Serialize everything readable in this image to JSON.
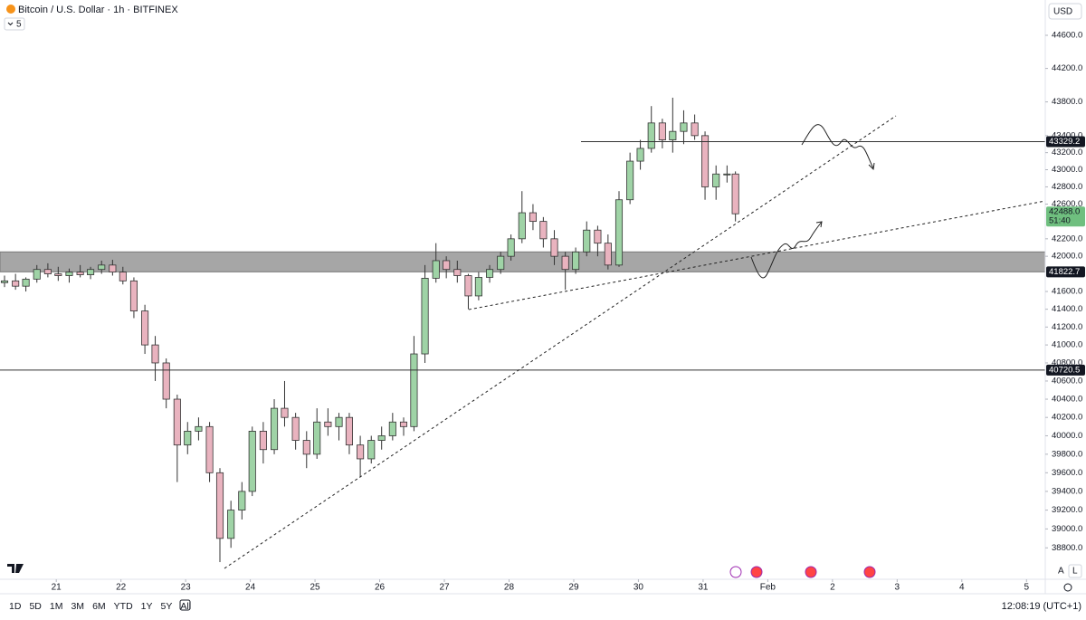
{
  "header": {
    "symbol": "Bitcoin / U.S. Dollar · 1h · BITFINEX",
    "indicator_count": "5",
    "currency": "USD"
  },
  "chart_data": {
    "type": "candlestick",
    "x": [
      20.2,
      20.37,
      20.53,
      20.7,
      20.87,
      21.03,
      21.2,
      21.37,
      21.53,
      21.7,
      21.87,
      22.03,
      22.2,
      22.37,
      22.53,
      22.7,
      22.87,
      23.03,
      23.2,
      23.37,
      23.53,
      23.7,
      23.87,
      24.03,
      24.2,
      24.37,
      24.53,
      24.7,
      24.87,
      25.03,
      25.2,
      25.37,
      25.53,
      25.7,
      25.87,
      26.03,
      26.2,
      26.37,
      26.53,
      26.7,
      26.87,
      27.03,
      27.2,
      27.37,
      27.53,
      27.7,
      27.87,
      28.03,
      28.2,
      28.37,
      28.53,
      28.7,
      28.87,
      29.03,
      29.2,
      29.37,
      29.53,
      29.7,
      29.87,
      30.03,
      30.2,
      30.37,
      30.53,
      30.7,
      30.87,
      31.03,
      31.2,
      31.37,
      31.5
    ],
    "open": [
      41700,
      41720,
      41660,
      41740,
      41850,
      41800,
      41780,
      41820,
      41790,
      41850,
      41900,
      41820,
      41720,
      41380,
      41000,
      40800,
      40400,
      39900,
      40050,
      40100,
      39600,
      38900,
      39200,
      39400,
      40050,
      39850,
      40300,
      40200,
      39950,
      39800,
      40150,
      40100,
      40200,
      39900,
      39750,
      39950,
      40000,
      40150,
      40100,
      40900,
      41750,
      41950,
      41850,
      41780,
      41550,
      41760,
      41850,
      42000,
      42200,
      42500,
      42400,
      42200,
      42000,
      41850,
      42050,
      42300,
      42150,
      41900,
      42650,
      43100,
      43250,
      43550,
      43350,
      43450,
      43550,
      43400,
      42800,
      42950,
      42950
    ],
    "high": [
      41780,
      41800,
      41760,
      41900,
      41920,
      41880,
      41860,
      41900,
      41880,
      41950,
      41960,
      41880,
      41760,
      41450,
      41100,
      40850,
      40450,
      40150,
      40200,
      40150,
      39650,
      39300,
      39500,
      40100,
      40150,
      40400,
      40600,
      40250,
      40050,
      40300,
      40300,
      40250,
      40250,
      40000,
      40000,
      40100,
      40250,
      40200,
      41100,
      41900,
      42150,
      42000,
      41950,
      41800,
      41820,
      41900,
      42050,
      42250,
      42750,
      42600,
      42450,
      42300,
      42050,
      42100,
      42400,
      42350,
      42250,
      42750,
      43200,
      43350,
      43750,
      43600,
      43850,
      43700,
      43650,
      43450,
      43050,
      43050,
      42980
    ],
    "low": [
      41650,
      41620,
      41600,
      41700,
      41760,
      41720,
      41700,
      41760,
      41740,
      41800,
      41780,
      41680,
      41300,
      40900,
      40600,
      40300,
      39500,
      39800,
      39950,
      39500,
      38650,
      38800,
      39100,
      39350,
      39700,
      39800,
      40100,
      39850,
      39650,
      39750,
      40000,
      39950,
      39800,
      39550,
      39700,
      39850,
      39950,
      40000,
      40050,
      40800,
      41700,
      41750,
      41700,
      41400,
      41500,
      41700,
      41800,
      41950,
      42150,
      42300,
      42100,
      41900,
      41620,
      41800,
      42000,
      42000,
      41850,
      41880,
      42600,
      43000,
      43200,
      43250,
      43200,
      43300,
      43350,
      42650,
      42650,
      42850,
      42400
    ],
    "close": [
      41720,
      41660,
      41740,
      41850,
      41800,
      41780,
      41820,
      41790,
      41850,
      41900,
      41820,
      41720,
      41380,
      41000,
      40800,
      40400,
      39900,
      40050,
      40100,
      39600,
      38900,
      39200,
      39400,
      40050,
      39850,
      40300,
      40200,
      39950,
      39800,
      40150,
      40100,
      40200,
      39900,
      39750,
      39950,
      40000,
      40150,
      40100,
      40900,
      41750,
      41950,
      41850,
      41780,
      41550,
      41760,
      41850,
      42000,
      42200,
      42500,
      42400,
      42200,
      42000,
      41850,
      42050,
      42300,
      42150,
      41900,
      42650,
      43100,
      43250,
      43550,
      43350,
      43450,
      43550,
      43400,
      42800,
      42950,
      42950,
      42488
    ],
    "up_color": "#9fd3a6",
    "down_color": "#e9b3bf",
    "ylim": [
      38470,
      45030
    ],
    "log": true,
    "yticks": [
      {
        "value": 44600,
        "label": "44600.0"
      },
      {
        "value": 44200,
        "label": "44200.0"
      },
      {
        "value": 43800,
        "label": "43800.0"
      },
      {
        "value": 43400,
        "label": "43400.0"
      },
      {
        "value": 43200,
        "label": "43200.0"
      },
      {
        "value": 43000,
        "label": "43000.0"
      },
      {
        "value": 42800,
        "label": "42800.0"
      },
      {
        "value": 42600,
        "label": "42600.0"
      },
      {
        "value": 42200,
        "label": "42200.0"
      },
      {
        "value": 42000,
        "label": "42000.0"
      },
      {
        "value": 41600,
        "label": "41600.0"
      },
      {
        "value": 41400,
        "label": "41400.0"
      },
      {
        "value": 41200,
        "label": "41200.0"
      },
      {
        "value": 41000,
        "label": "41000.0"
      },
      {
        "value": 40800,
        "label": "40800.0"
      },
      {
        "value": 40600,
        "label": "40600.0"
      },
      {
        "value": 40400,
        "label": "40400.0"
      },
      {
        "value": 40200,
        "label": "40200.0"
      },
      {
        "value": 40000,
        "label": "40000.0"
      },
      {
        "value": 39800,
        "label": "39800.0"
      },
      {
        "value": 39600,
        "label": "39600.0"
      },
      {
        "value": 39400,
        "label": "39400.0"
      },
      {
        "value": 39200,
        "label": "39200.0"
      },
      {
        "value": 39000,
        "label": "39000.0"
      },
      {
        "value": 38800,
        "label": "38800.0"
      }
    ],
    "xlim": [
      20.13,
      36.29
    ],
    "xticks": [
      21,
      22,
      23,
      24,
      25,
      26,
      27,
      28,
      29,
      30,
      31,
      {
        "value": 32,
        "label": "Feb"
      },
      {
        "value": 33,
        "label": "2"
      },
      {
        "value": 34,
        "label": "3"
      },
      {
        "value": 35,
        "label": "4"
      },
      {
        "value": 36,
        "label": "5"
      }
    ],
    "zone": [
      41822.7,
      42050
    ],
    "price_lines": [
      43329.2,
      41822.7,
      40720.5
    ],
    "last_price": {
      "value": 42488,
      "label": "42488.0",
      "countdown": "51:40"
    }
  },
  "toolbar": {
    "ranges": [
      "1D",
      "5D",
      "1M",
      "3M",
      "6M",
      "YTD",
      "1Y",
      "5Y",
      "All"
    ],
    "clock": "12:08:19 (UTC+1)",
    "scale_modes": [
      "A",
      "L"
    ]
  }
}
